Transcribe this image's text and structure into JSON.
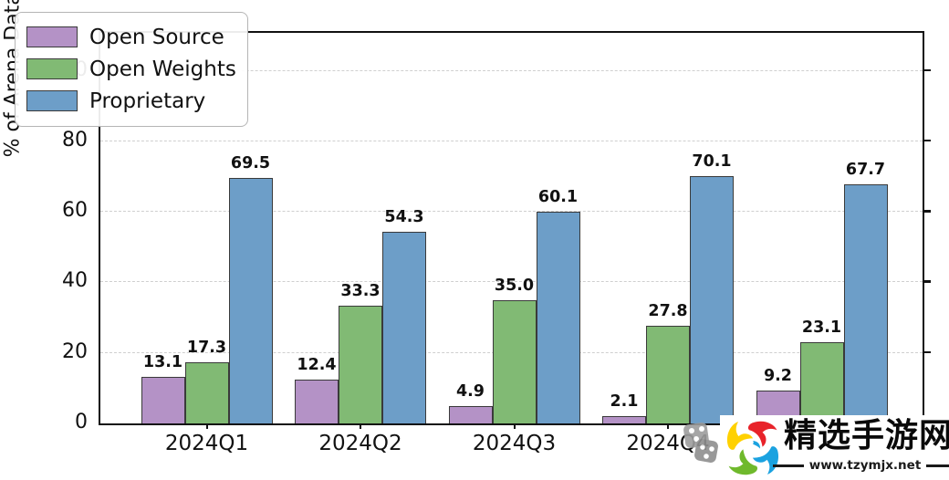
{
  "chart_data": {
    "type": "bar",
    "title": "",
    "xlabel": "",
    "ylabel": "% of Arena Data",
    "categories": [
      "2024Q1",
      "2024Q2",
      "2024Q3",
      "2024Q4",
      ""
    ],
    "series": [
      {
        "name": "Open Source",
        "color": "#b492c6",
        "values": [
          13.1,
          12.4,
          4.9,
          2.1,
          9.2
        ]
      },
      {
        "name": "Open Weights",
        "color": "#81ba74",
        "values": [
          17.3,
          33.3,
          35.0,
          27.8,
          23.1
        ]
      },
      {
        "name": "Proprietary",
        "color": "#6d9ec8",
        "values": [
          69.5,
          54.3,
          60.1,
          70.1,
          67.7
        ]
      }
    ],
    "y_ticks": [
      0,
      20,
      40,
      60,
      80,
      100
    ],
    "ylim": [
      0,
      110.5
    ],
    "grid": "horizontal dashed",
    "legend_position": "upper left",
    "bar_edge_color": "#3a3a3a",
    "value_labels_decimals": 1
  },
  "watermark": {
    "site_name": "精选手游网",
    "site_url": "www.tzymjx.net",
    "logo_colors": {
      "red": "#e8232a",
      "blue": "#1ba2e0",
      "yellow": "#ffd100",
      "green": "#6fb92c"
    },
    "dice_icon_color": "#9d9d9d"
  }
}
